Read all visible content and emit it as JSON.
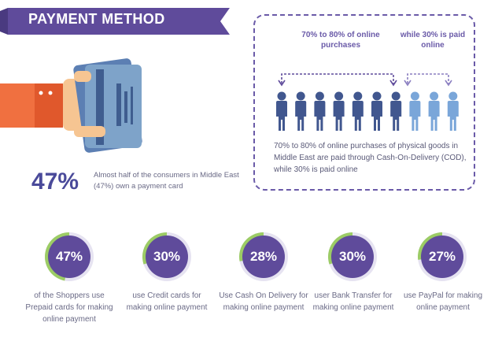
{
  "title": "PAYMENT METHOD",
  "colors": {
    "purple": "#5f4b9b",
    "light_purple": "#8b7fc1",
    "accent_green": "#9ccc65",
    "ring_bg": "#e6e3f1",
    "person_dark": "#41578f",
    "person_light": "#7aa6d9",
    "sleeve": "#f07040",
    "hand": "#f6c592",
    "card": "#7ea3c9"
  },
  "card_stat": {
    "value": "47%",
    "text": "Almost half of the consumers in Middle East (47%) own a payment card"
  },
  "split": {
    "header_left": "70% to 80% of online purchases",
    "header_right": "while 30% is paid online",
    "description": "70% to 80% of online purchases of physical goods in Middle East are paid through Cash-On-Delivery (COD), while 30% is paid online",
    "people_dark_count": 7,
    "people_light_count": 3
  },
  "circles": [
    {
      "value": "47%",
      "fraction": 0.47,
      "text": "of the Shoppers use Prepaid cards for making online payment"
    },
    {
      "value": "30%",
      "fraction": 0.3,
      "text": "use Credit cards for making online payment"
    },
    {
      "value": "28%",
      "fraction": 0.28,
      "text": "Use Cash On Delivery for making online payment"
    },
    {
      "value": "30%",
      "fraction": 0.3,
      "text": "user Bank Transfer for making online payment"
    },
    {
      "value": "27%",
      "fraction": 0.27,
      "text": "use PayPal for making online payment"
    }
  ]
}
